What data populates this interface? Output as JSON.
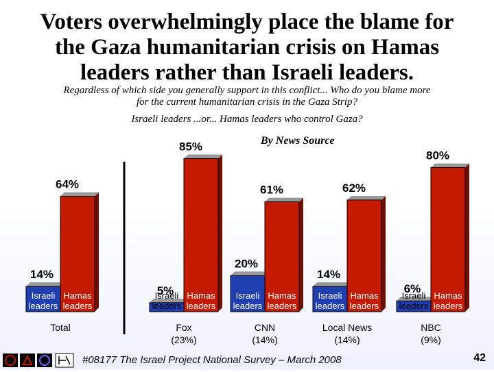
{
  "title": "Voters overwhelmingly place the blame for the Gaza humanitarian crisis on Hamas leaders rather than Israeli leaders.",
  "title_lines": [
    "Voters overwhelmingly place the blame for",
    "the Gaza humanitarian crisis on Hamas",
    "leaders rather than Israeli leaders."
  ],
  "question_lines": [
    "Regardless of which side you generally support in this conflict... Who do you blame more",
    "for the current humanitarian crisis in the Gaza Strip?"
  ],
  "options_text": "Israeli leaders ...or... Hamas leaders who control Gaza?",
  "news_source_label": "By News Source",
  "footer": {
    "survey": "#08177 The Israel Project National Survey – March 2008",
    "page": "42"
  },
  "colors": {
    "israeli": "#1f3fb0",
    "hamas": "#c41a00"
  },
  "chart_data": {
    "type": "bar",
    "title": "",
    "categories": [
      "Total",
      "Fox (23%)",
      "CNN (14%)",
      "Local News (14%)",
      "NBC (9%)"
    ],
    "category_lines": [
      [
        "Total"
      ],
      [
        "Fox",
        "(23%)"
      ],
      [
        "CNN",
        "(14%)"
      ],
      [
        "Local News",
        "(14%)"
      ],
      [
        "NBC",
        "(9%)"
      ]
    ],
    "series": [
      {
        "name": "Israeli leaders",
        "label_lines": [
          "Israeli",
          "leaders"
        ],
        "values": [
          14,
          5,
          20,
          14,
          6
        ]
      },
      {
        "name": "Hamas leaders",
        "label_lines": [
          "Hamas",
          "leaders"
        ],
        "values": [
          64,
          85,
          61,
          62,
          80
        ]
      }
    ],
    "value_suffix": "%",
    "ylim": [
      0,
      100
    ],
    "xlabel": "",
    "ylabel": "",
    "grid": false
  }
}
